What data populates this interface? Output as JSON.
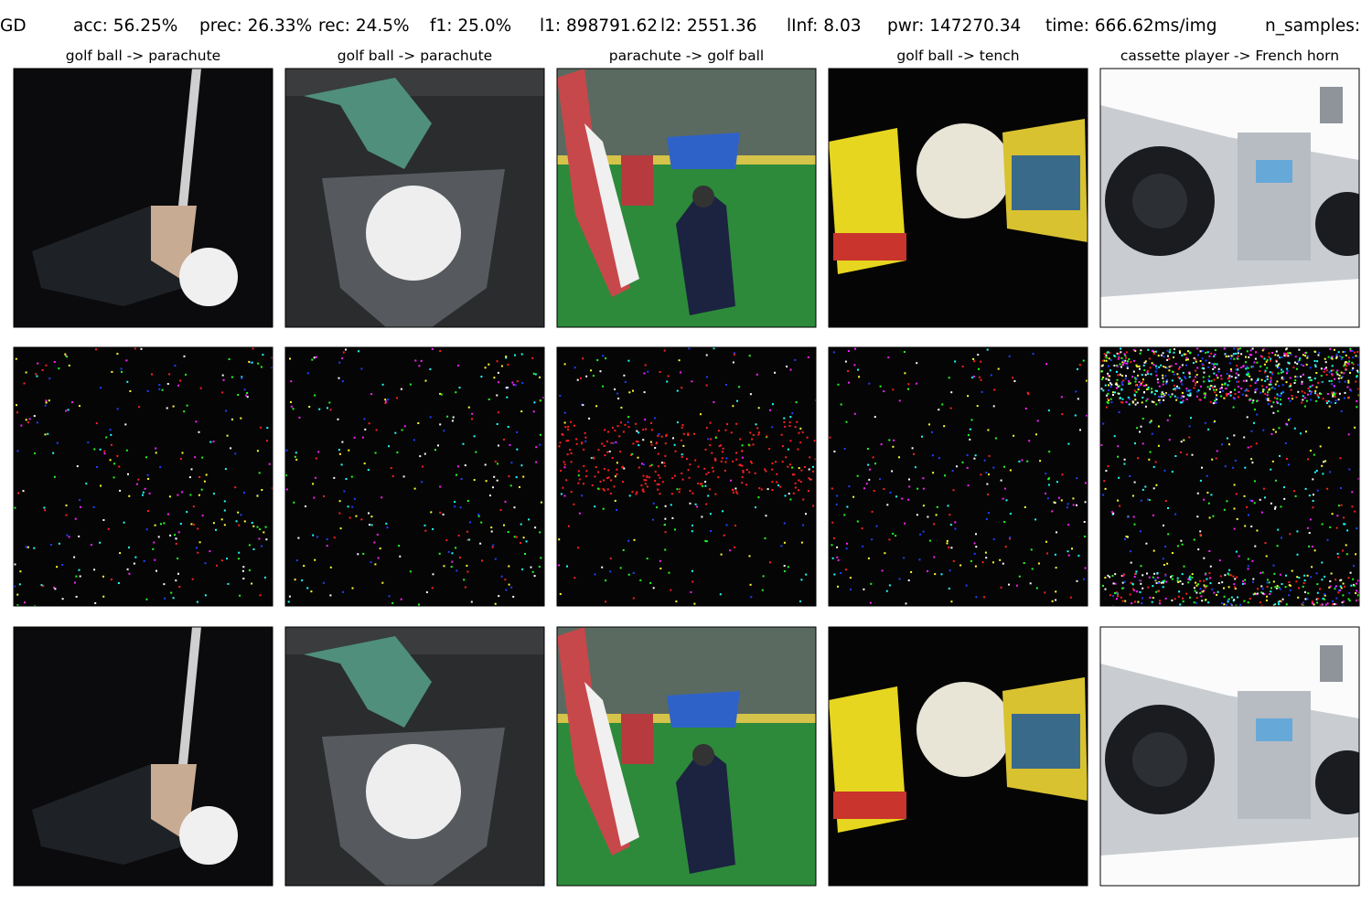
{
  "header": {
    "items": [
      "GD",
      "acc: 56.25%",
      "prec: 26.33%",
      "rec: 24.5%",
      "f1: 25.0%",
      "l1: 898791.62",
      "l2: 2551.36",
      "lInf: 8.03",
      "pwr: 147270.34",
      "time: 666.62ms/img",
      "n_samples:"
    ]
  },
  "columns": [
    {
      "title": "golf ball -> parachute"
    },
    {
      "title": "golf ball -> parachute"
    },
    {
      "title": "parachute -> golf ball"
    },
    {
      "title": "golf ball -> tench"
    },
    {
      "title": "cassette player -> French horn"
    }
  ]
}
